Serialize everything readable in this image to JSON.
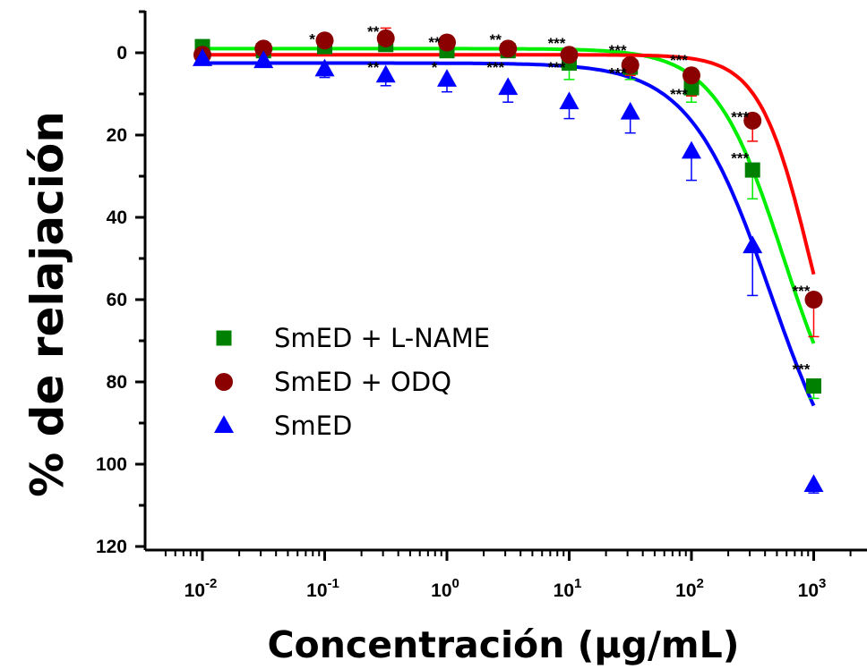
{
  "chart_data": {
    "type": "scatter",
    "title": "",
    "xlabel": "Concentración (µg/mL)",
    "ylabel": "% de relajación",
    "xscale": "log",
    "xlim": [
      0.005,
      2000
    ],
    "ylim": [
      -10,
      120
    ],
    "y_inverted": true,
    "y_ticks": [
      "0",
      "20",
      "40",
      "60",
      "80",
      "100",
      "120"
    ],
    "x_ticks": [
      {
        "base": "10",
        "exp": "-2"
      },
      {
        "base": "10",
        "exp": "-1"
      },
      {
        "base": "10",
        "exp": "0"
      },
      {
        "base": "10",
        "exp": "1"
      },
      {
        "base": "10",
        "exp": "2"
      },
      {
        "base": "10",
        "exp": "3"
      }
    ],
    "legend_position": "middle-left",
    "series": [
      {
        "name": "SmED + L-NAME",
        "marker": "square",
        "color": "#008000",
        "line_color": "#00ee00",
        "x": [
          0.01,
          0.0316,
          0.1,
          0.316,
          1,
          3.16,
          10,
          31.6,
          100,
          316,
          1000
        ],
        "y": [
          -1.5,
          -0.5,
          -1.5,
          -2,
          -0.5,
          -0.5,
          2.5,
          3.5,
          8.5,
          28.5,
          81
        ],
        "err": [
          1,
          0.8,
          1,
          1.2,
          3.5,
          1,
          4,
          3,
          3.5,
          7,
          3
        ]
      },
      {
        "name": "SmED + ODQ",
        "marker": "circle",
        "color": "#8b0000",
        "line_color": "#ff0000",
        "x": [
          0.01,
          0.0316,
          0.1,
          0.316,
          1,
          3.16,
          10,
          31.6,
          100,
          316,
          1000
        ],
        "y": [
          0.5,
          -1,
          -3,
          -3.5,
          -2.5,
          -1,
          0.5,
          3,
          5.5,
          16.5,
          60
        ],
        "err": [
          0.8,
          1,
          1.2,
          2.5,
          1.5,
          1,
          3,
          2.5,
          5,
          5,
          9
        ]
      },
      {
        "name": "SmED",
        "marker": "triangle",
        "color": "#0000ff",
        "line_color": "#0000ff",
        "x": [
          0.01,
          0.0316,
          0.1,
          0.316,
          1,
          3.16,
          10,
          31.6,
          100,
          316,
          1000
        ],
        "y": [
          1.5,
          2,
          4,
          5.5,
          6.5,
          8.5,
          12,
          14.5,
          24,
          47,
          105
        ],
        "err": [
          1,
          1.5,
          2,
          2.5,
          3,
          3.5,
          4,
          5,
          7,
          12,
          2
        ]
      }
    ],
    "fit_curves": [
      {
        "name": "SmED + L-NAME",
        "color": "#00ee00",
        "bottom": -1,
        "top": 100,
        "log_ec50": 2.75,
        "hill": 1.55
      },
      {
        "name": "SmED + ODQ",
        "color": "#ff0000",
        "bottom": 0.5,
        "top": 100,
        "log_ec50": 2.97,
        "hill": 2.1
      },
      {
        "name": "SmED",
        "color": "#0000ff",
        "bottom": 2.5,
        "top": 115,
        "log_ec50": 2.65,
        "hill": 1.3
      }
    ],
    "annotations": [
      {
        "text": "*",
        "x": 0.1,
        "y": -3.4
      },
      {
        "text": "**",
        "x": 0.316,
        "y": -5.2
      },
      {
        "text": "**",
        "x": 1,
        "y": -2.6
      },
      {
        "text": "**",
        "x": 3.16,
        "y": -3.3
      },
      {
        "text": "***",
        "x": 10,
        "y": -2.4
      },
      {
        "text": "***",
        "x": 31.6,
        "y": -0.6
      },
      {
        "text": "***",
        "x": 100,
        "y": 1.7
      },
      {
        "text": "**",
        "x": 0.316,
        "y": 3.5
      },
      {
        "text": "*",
        "x": 1,
        "y": 3.5
      },
      {
        "text": "***",
        "x": 3.16,
        "y": 3.5
      },
      {
        "text": "***",
        "x": 10,
        "y": 3.5
      },
      {
        "text": "***",
        "x": 31.6,
        "y": 4.9
      },
      {
        "text": "***",
        "x": 100,
        "y": 10
      },
      {
        "text": "***",
        "x": 316,
        "y": 15.5
      },
      {
        "text": "***",
        "x": 316,
        "y": 25.5
      },
      {
        "text": "***",
        "x": 1000,
        "y": 57.8
      },
      {
        "text": "***",
        "x": 1000,
        "y": 76.8
      }
    ]
  }
}
